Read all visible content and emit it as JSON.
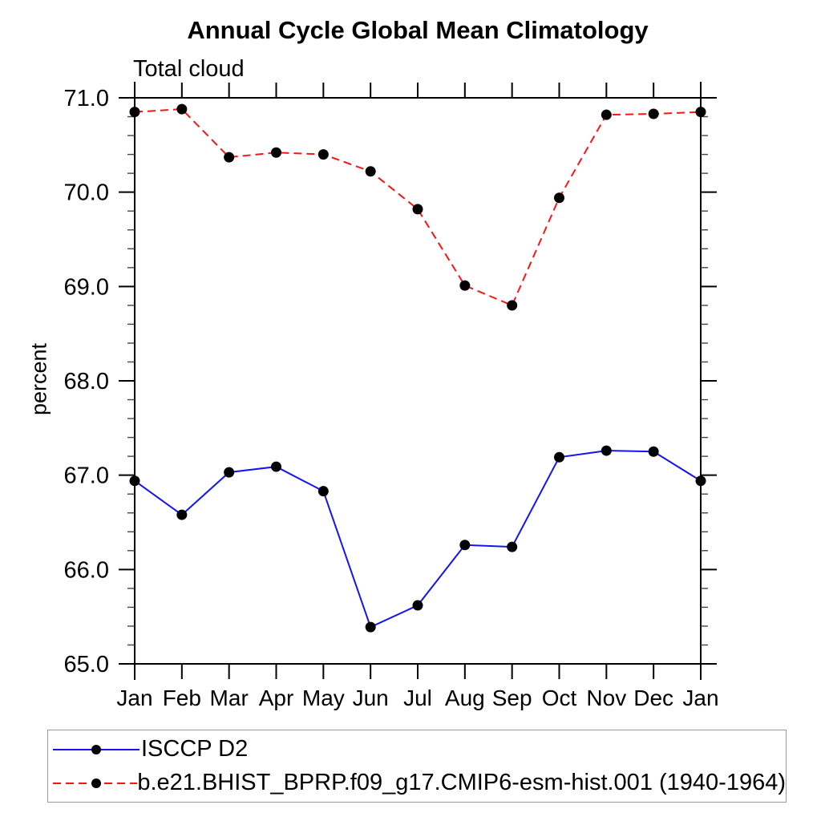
{
  "page": {
    "background": "#ffffff"
  },
  "chart_data": {
    "type": "line",
    "title": "Annual Cycle Global Mean Climatology",
    "subtitle": "Total cloud",
    "ylabel": "percent",
    "x_categories": [
      "Jan",
      "Feb",
      "Mar",
      "Apr",
      "May",
      "Jun",
      "Jul",
      "Aug",
      "Sep",
      "Oct",
      "Nov",
      "Dec",
      "Jan"
    ],
    "ylim": [
      65.0,
      71.0
    ],
    "y_major_ticks": [
      "71.0",
      "70.0",
      "69.0",
      "68.0",
      "67.0",
      "66.0",
      "65.0"
    ],
    "y_minor_step": 0.2,
    "grid": false,
    "legend_position": "bottom-left-box",
    "marker": "filled-black-circle",
    "axis_color": "#000000",
    "series": [
      {
        "name": "ISCCP D2",
        "color": "#1414f0",
        "line_style": "solid",
        "values": [
          66.94,
          66.58,
          67.03,
          67.09,
          66.83,
          65.39,
          65.62,
          66.26,
          66.24,
          67.19,
          67.26,
          67.25,
          66.94
        ]
      },
      {
        "name": "b.e21.BHIST_BPRP.f09_g17.CMIP6-esm-hist.001 (1940-1964)",
        "color": "#fa1414",
        "line_style": "dashed",
        "values": [
          70.85,
          70.88,
          70.37,
          70.42,
          70.4,
          70.22,
          69.82,
          69.01,
          68.8,
          69.94,
          70.82,
          70.83,
          70.85
        ]
      }
    ]
  }
}
